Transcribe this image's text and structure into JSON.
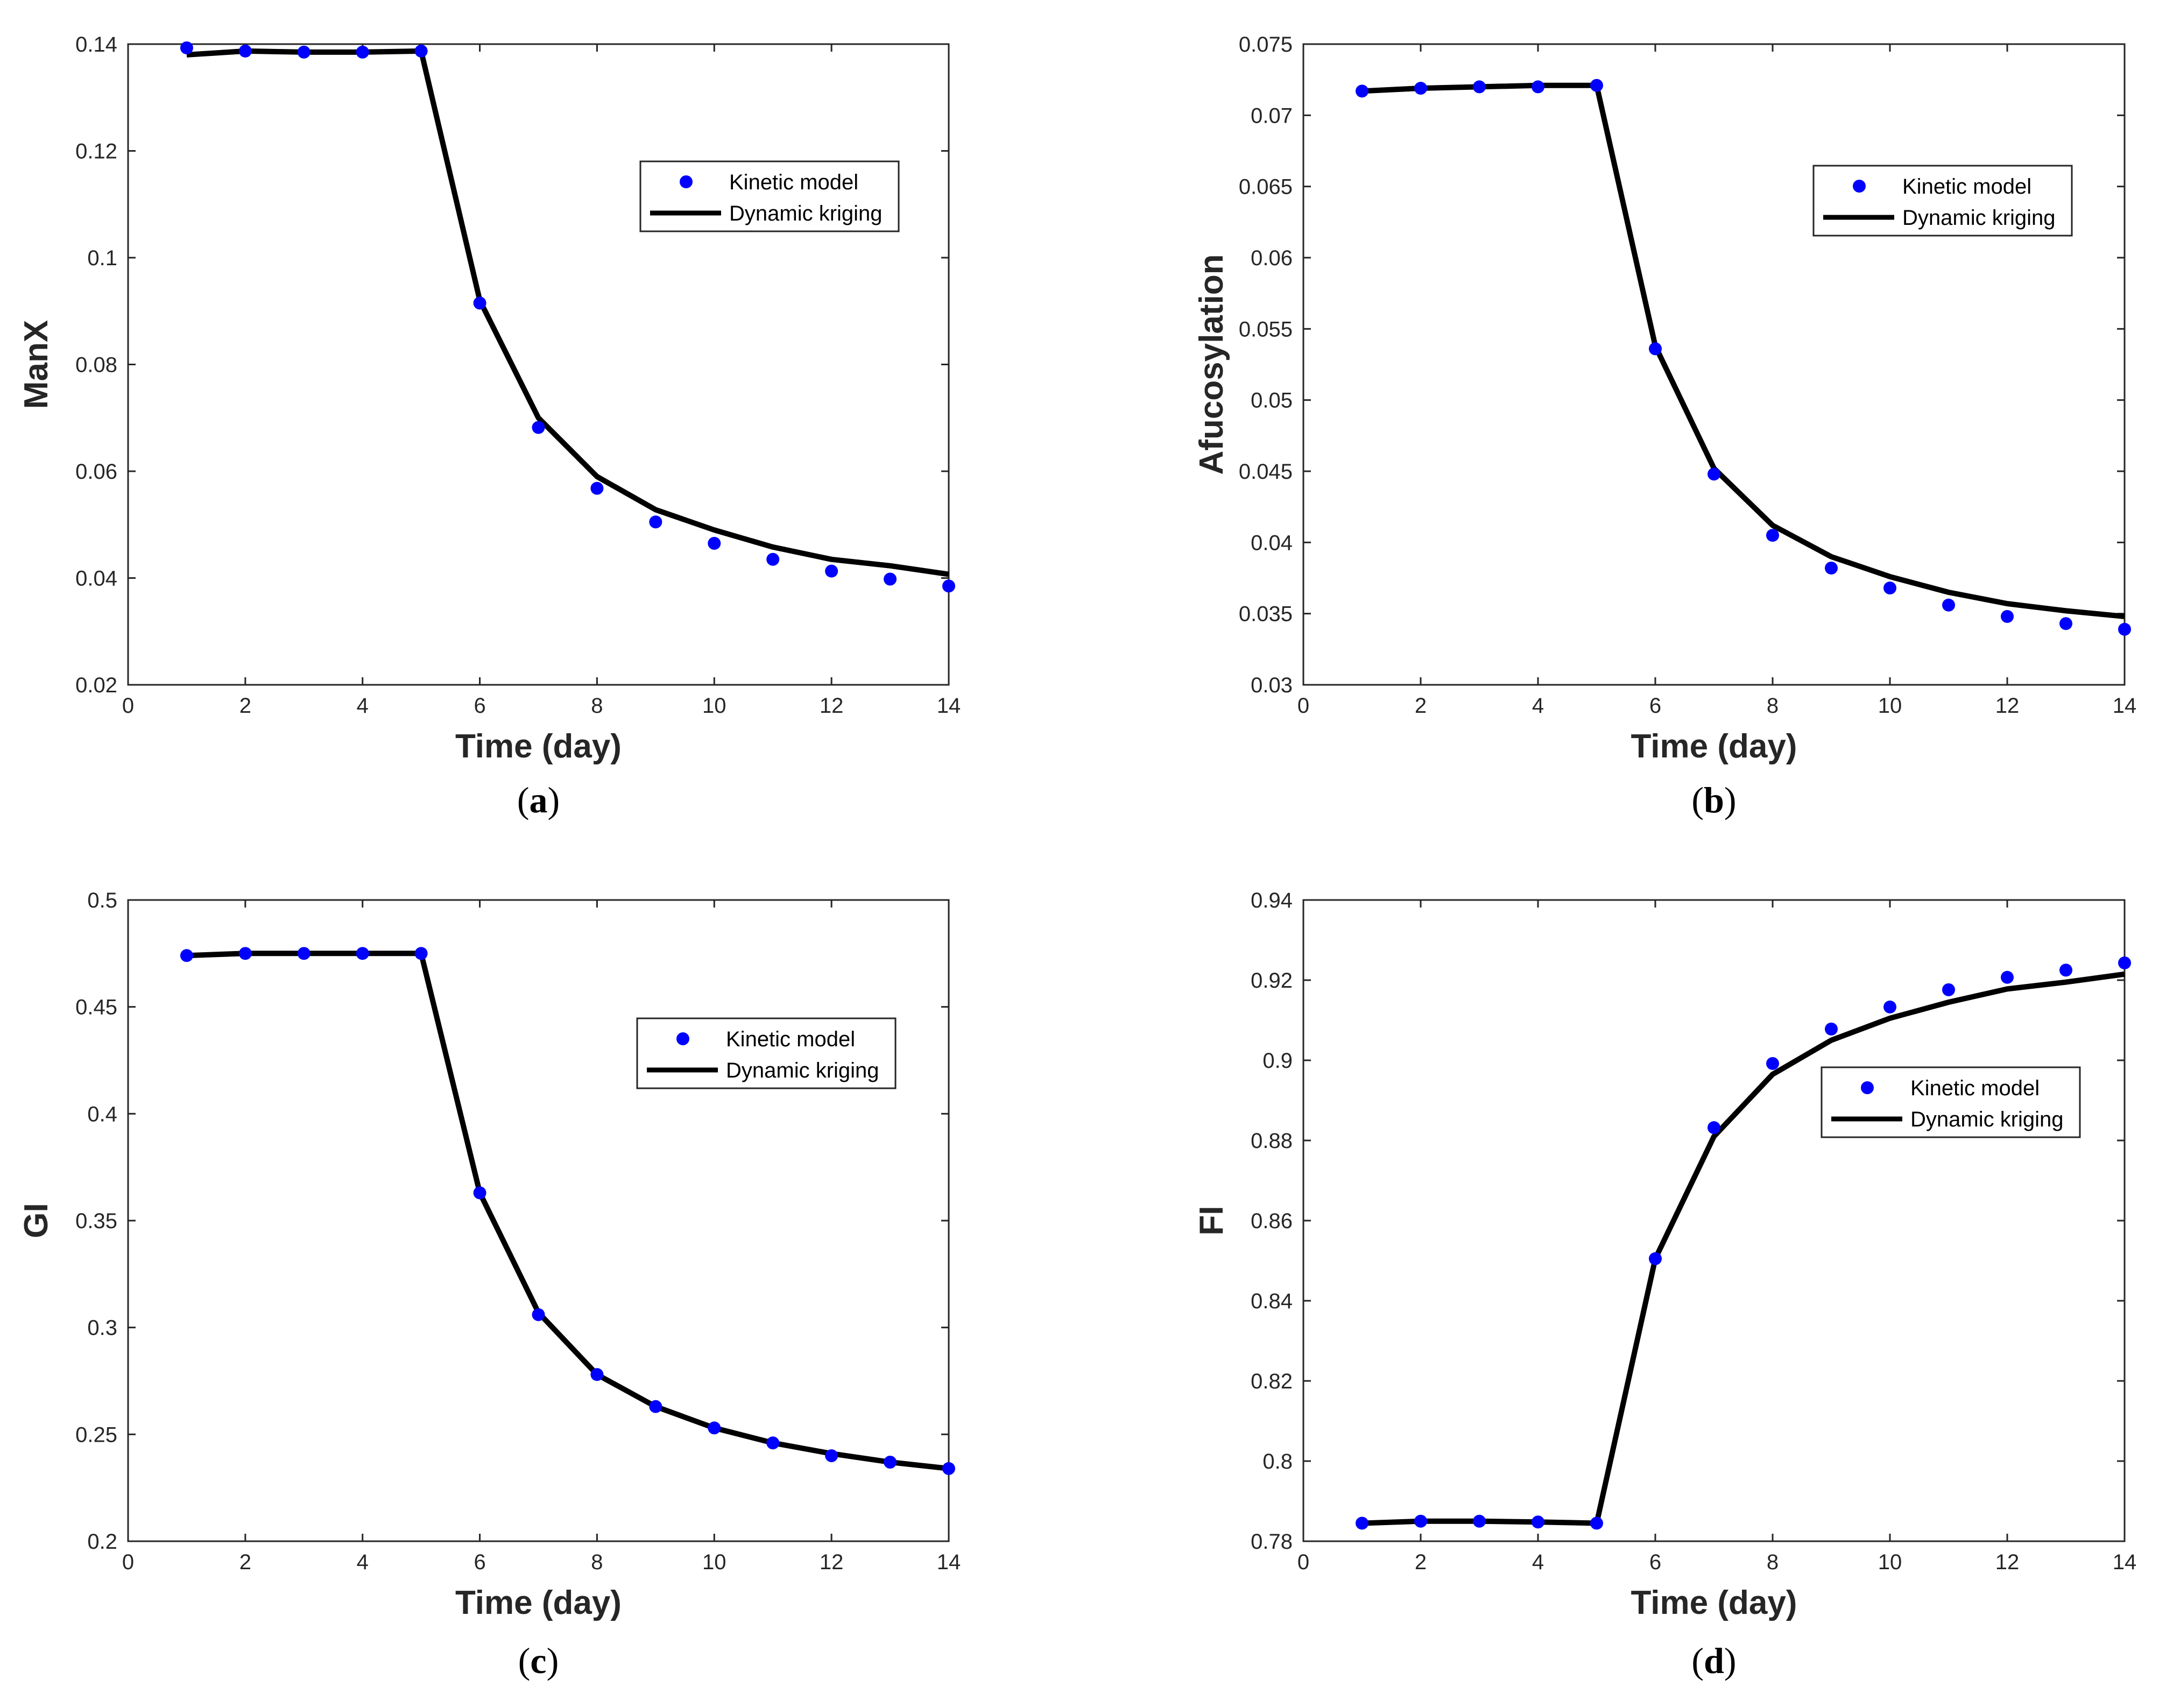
{
  "chart_data": [
    {
      "type": "line",
      "panel": "a",
      "caption": "(a)",
      "ylabel": "ManX",
      "xlabel": "Time (day)",
      "xlim": [
        0,
        14
      ],
      "ylim": [
        0.02,
        0.14
      ],
      "x_ticks": [
        0,
        2,
        4,
        6,
        8,
        10,
        12,
        14
      ],
      "x_tick_labels": [
        "0",
        "2",
        "4",
        "6",
        "8",
        "10",
        "12",
        "14"
      ],
      "y_ticks": [
        0.02,
        0.04,
        0.06,
        0.08,
        0.1,
        0.12,
        0.14
      ],
      "y_tick_labels": [
        "0.02",
        "0.04",
        "0.06",
        "0.08",
        "0.1",
        "0.12",
        "0.14"
      ],
      "legend_position": "upper-right",
      "series": [
        {
          "name": "Kinetic model",
          "style": "markers",
          "color": "#0000ff",
          "x": [
            1,
            2,
            3,
            4,
            5,
            6,
            7,
            8,
            9,
            10,
            11,
            12,
            13,
            14
          ],
          "values": [
            0.1393,
            0.1387,
            0.1385,
            0.1385,
            0.1387,
            0.0915,
            0.0682,
            0.0568,
            0.0505,
            0.0465,
            0.0435,
            0.0413,
            0.0398,
            0.0385
          ]
        },
        {
          "name": "Dynamic kriging",
          "style": "line",
          "color": "#000000",
          "x": [
            1,
            2,
            3,
            4,
            5,
            6,
            7,
            8,
            9,
            10,
            11,
            12,
            13,
            14
          ],
          "values": [
            0.138,
            0.1387,
            0.1385,
            0.1385,
            0.1387,
            0.092,
            0.07,
            0.059,
            0.0528,
            0.049,
            0.0458,
            0.0435,
            0.0423,
            0.0407
          ]
        }
      ]
    },
    {
      "type": "line",
      "panel": "b",
      "caption": "(b)",
      "ylabel": "Afucosylation",
      "xlabel": "Time (day)",
      "xlim": [
        0,
        14
      ],
      "ylim": [
        0.03,
        0.075
      ],
      "x_ticks": [
        0,
        2,
        4,
        6,
        8,
        10,
        12,
        14
      ],
      "x_tick_labels": [
        "0",
        "2",
        "4",
        "6",
        "8",
        "10",
        "12",
        "14"
      ],
      "y_ticks": [
        0.03,
        0.035,
        0.04,
        0.045,
        0.05,
        0.055,
        0.06,
        0.065,
        0.07,
        0.075
      ],
      "y_tick_labels": [
        "0.03",
        "0.035",
        "0.04",
        "0.045",
        "0.05",
        "0.055",
        "0.06",
        "0.065",
        "0.07",
        "0.075"
      ],
      "legend_position": "upper-right",
      "series": [
        {
          "name": "Kinetic model",
          "style": "markers",
          "color": "#0000ff",
          "x": [
            1,
            2,
            3,
            4,
            5,
            6,
            7,
            8,
            9,
            10,
            11,
            12,
            13,
            14
          ],
          "values": [
            0.0717,
            0.0719,
            0.072,
            0.072,
            0.0721,
            0.0536,
            0.0448,
            0.0405,
            0.0382,
            0.0368,
            0.0356,
            0.0348,
            0.0343,
            0.0339
          ]
        },
        {
          "name": "Dynamic kriging",
          "style": "line",
          "color": "#000000",
          "x": [
            1,
            2,
            3,
            4,
            5,
            6,
            7,
            8,
            9,
            10,
            11,
            12,
            13,
            14
          ],
          "values": [
            0.0717,
            0.0719,
            0.072,
            0.0721,
            0.0721,
            0.0538,
            0.0452,
            0.0412,
            0.039,
            0.0376,
            0.0365,
            0.0357,
            0.0352,
            0.0348
          ]
        }
      ]
    },
    {
      "type": "line",
      "panel": "c",
      "caption": "(c)",
      "ylabel": "GI",
      "xlabel": "Time (day)",
      "xlim": [
        0,
        14
      ],
      "ylim": [
        0.2,
        0.5
      ],
      "x_ticks": [
        0,
        2,
        4,
        6,
        8,
        10,
        12,
        14
      ],
      "x_tick_labels": [
        "0",
        "2",
        "4",
        "6",
        "8",
        "10",
        "12",
        "14"
      ],
      "y_ticks": [
        0.2,
        0.25,
        0.3,
        0.35,
        0.4,
        0.45,
        0.5
      ],
      "y_tick_labels": [
        "0.2",
        "0.25",
        "0.3",
        "0.35",
        "0.4",
        "0.45",
        "0.5"
      ],
      "legend_position": "upper-right",
      "series": [
        {
          "name": "Kinetic model",
          "style": "markers",
          "color": "#0000ff",
          "x": [
            1,
            2,
            3,
            4,
            5,
            6,
            7,
            8,
            9,
            10,
            11,
            12,
            13,
            14
          ],
          "values": [
            0.474,
            0.475,
            0.475,
            0.475,
            0.475,
            0.363,
            0.306,
            0.278,
            0.263,
            0.253,
            0.246,
            0.24,
            0.237,
            0.234
          ]
        },
        {
          "name": "Dynamic kriging",
          "style": "line",
          "color": "#000000",
          "x": [
            1,
            2,
            3,
            4,
            5,
            6,
            7,
            8,
            9,
            10,
            11,
            12,
            13,
            14
          ],
          "values": [
            0.474,
            0.475,
            0.475,
            0.475,
            0.475,
            0.363,
            0.307,
            0.278,
            0.263,
            0.253,
            0.246,
            0.241,
            0.237,
            0.234
          ]
        }
      ]
    },
    {
      "type": "line",
      "panel": "d",
      "caption": "(d)",
      "ylabel": "FI",
      "xlabel": "Time (day)",
      "xlim": [
        0,
        14
      ],
      "ylim": [
        0.78,
        0.94
      ],
      "x_ticks": [
        0,
        2,
        4,
        6,
        8,
        10,
        12,
        14
      ],
      "x_tick_labels": [
        "0",
        "2",
        "4",
        "6",
        "8",
        "10",
        "12",
        "14"
      ],
      "y_ticks": [
        0.78,
        0.8,
        0.82,
        0.84,
        0.86,
        0.88,
        0.9,
        0.92,
        0.94
      ],
      "y_tick_labels": [
        "0.78",
        "0.8",
        "0.82",
        "0.84",
        "0.86",
        "0.88",
        "0.9",
        "0.92",
        "0.94"
      ],
      "legend_position": "center-right",
      "series": [
        {
          "name": "Kinetic model",
          "style": "markers",
          "color": "#0000ff",
          "x": [
            1,
            2,
            3,
            4,
            5,
            6,
            7,
            8,
            9,
            10,
            11,
            12,
            13,
            14
          ],
          "values": [
            0.7845,
            0.785,
            0.785,
            0.7848,
            0.7845,
            0.8505,
            0.8832,
            0.8992,
            0.9078,
            0.9133,
            0.9176,
            0.9207,
            0.9225,
            0.9243
          ]
        },
        {
          "name": "Dynamic kriging",
          "style": "line",
          "color": "#000000",
          "x": [
            1,
            2,
            3,
            4,
            5,
            6,
            7,
            8,
            9,
            10,
            11,
            12,
            13,
            14
          ],
          "values": [
            0.7845,
            0.785,
            0.785,
            0.7848,
            0.7845,
            0.8505,
            0.881,
            0.8965,
            0.905,
            0.9105,
            0.9145,
            0.9178,
            0.9195,
            0.9215
          ]
        }
      ]
    }
  ]
}
